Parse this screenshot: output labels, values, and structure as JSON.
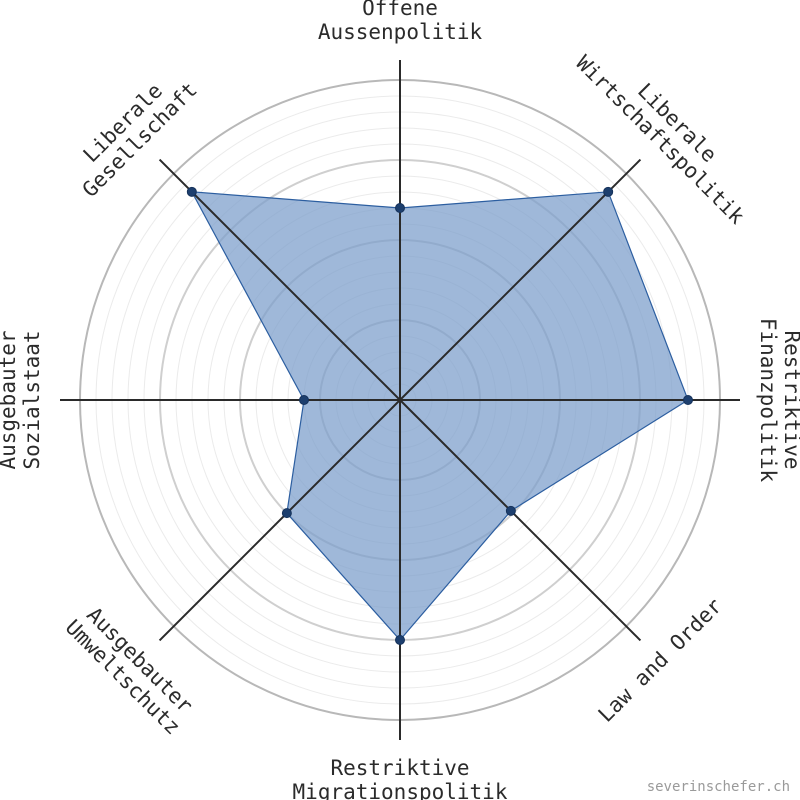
{
  "chart_data": {
    "type": "radar",
    "max": 100,
    "categories": [
      "Offene Aussenpolitik",
      "Liberale Wirtschaftspolitik",
      "Restriktive Finanzpolitik",
      "Law and Order",
      "Restriktive Migrationspolitik",
      "Ausgebauter Umweltschutz",
      "Ausgebauter Sozialstaat",
      "Liberale Gesellschaft"
    ],
    "category_lines": [
      [
        "Offene",
        "Aussenpolitik"
      ],
      [
        "Liberale",
        "Wirtschaftspolitik"
      ],
      [
        "Restriktive",
        "Finanzpolitik"
      ],
      [
        "Law and Order"
      ],
      [
        "Restriktive",
        "Migrationspolitik"
      ],
      [
        "Ausgebauter",
        "Umweltschutz"
      ],
      [
        "Ausgebauter",
        "Sozialstaat"
      ],
      [
        "Liberale",
        "Gesellschaft"
      ]
    ],
    "values": [
      60,
      92,
      90,
      49,
      75,
      50,
      30,
      92
    ],
    "grid": "concentric circles",
    "fill_color": "#7a9dcb",
    "line_color": "#2c5ea0",
    "point_color": "#1d3f6e"
  },
  "footer": {
    "credit": "severinschefer.ch"
  }
}
